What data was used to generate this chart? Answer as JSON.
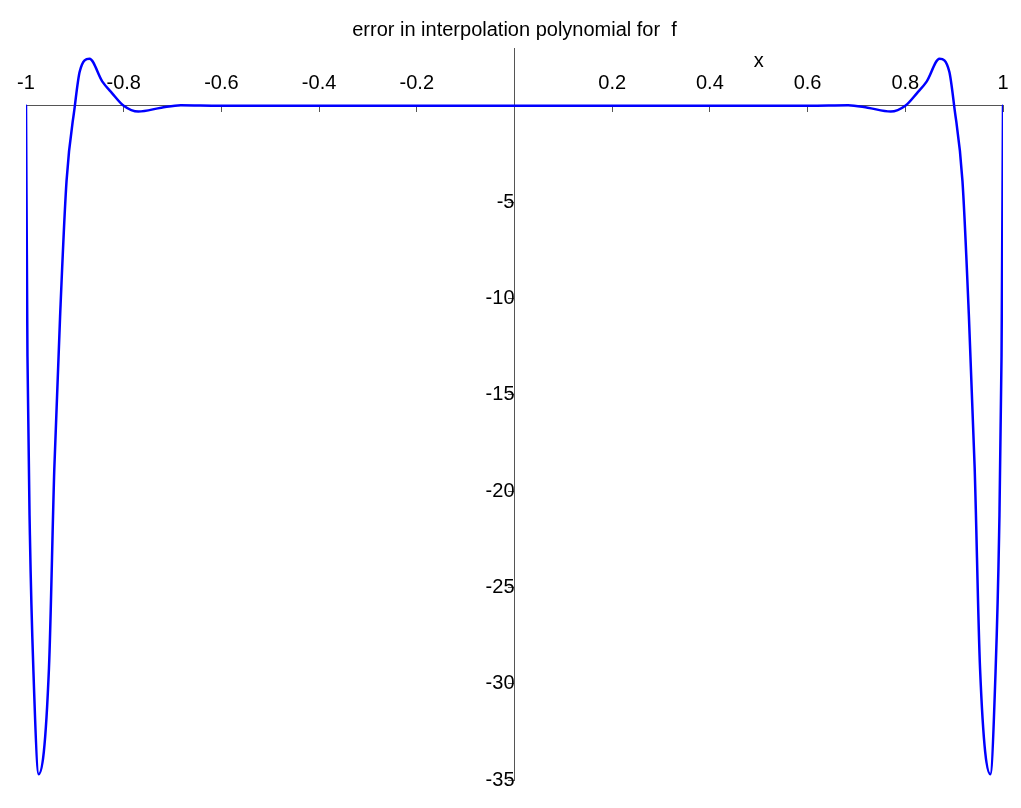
{
  "chart_data": {
    "type": "line",
    "title": "error in interpolation polynomial for  f",
    "xlabel": "x",
    "series": [
      {
        "color": "#0000ff",
        "x": [
          -1,
          -0.997,
          -0.992,
          -0.985,
          -0.974,
          -0.953,
          -0.942,
          -0.93,
          -0.917,
          -0.9,
          -0.89,
          -0.87,
          -0.844,
          -0.824,
          -0.8,
          -0.77,
          -0.723,
          -0.683,
          -0.603,
          0,
          0.603,
          0.683,
          0.723,
          0.77,
          0.8,
          0.824,
          0.844,
          0.87,
          0.89,
          0.9,
          0.917,
          0.93,
          0.942,
          0.953,
          0.974,
          0.985,
          0.992,
          0.997,
          1
        ],
        "values": [
          0,
          -13,
          -22.3,
          -29.2,
          -34.7,
          -29.2,
          -18.8,
          -10.8,
          -3.9,
          0,
          1.78,
          2.44,
          1.27,
          0.66,
          0,
          -0.3,
          -0.1,
          0.03,
          0,
          0,
          0,
          0.03,
          -0.1,
          -0.3,
          0,
          0.66,
          1.27,
          2.44,
          1.78,
          0,
          -3.9,
          -10.8,
          -18.8,
          -29.2,
          -34.7,
          -29.2,
          -22.3,
          -13,
          0
        ]
      }
    ],
    "xlim": [
      -1,
      1
    ],
    "xticks": [
      -1,
      -0.8,
      -0.6,
      -0.4,
      -0.2,
      0.2,
      0.4,
      0.6,
      0.8,
      1
    ],
    "ylim": [
      -35,
      3
    ],
    "yticks": [
      -35,
      -30,
      -25,
      -20,
      -15,
      -10,
      -5
    ],
    "grid": false,
    "legend": false,
    "marker": "none",
    "line_style": "solid"
  }
}
